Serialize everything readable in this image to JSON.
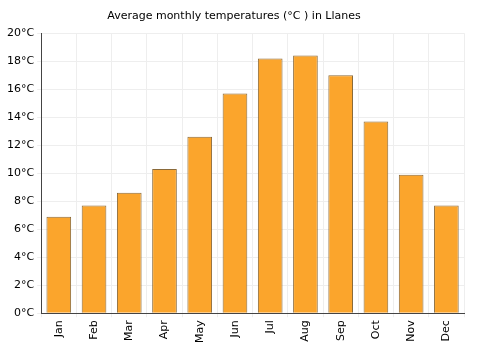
{
  "chart_data": {
    "type": "bar",
    "title": "Average monthly temperatures (°C ) in Llanes",
    "categories": [
      "Jan",
      "Feb",
      "Mar",
      "Apr",
      "May",
      "Jun",
      "Jul",
      "Aug",
      "Sep",
      "Oct",
      "Nov",
      "Dec"
    ],
    "values": [
      6.9,
      7.7,
      8.6,
      10.3,
      12.6,
      15.7,
      18.2,
      18.4,
      17.0,
      13.7,
      9.9,
      7.7
    ],
    "color": "#fba52c",
    "ylim": [
      0,
      20
    ],
    "yticks": [
      {
        "value": 0,
        "label": "0°C"
      },
      {
        "value": 2,
        "label": "2°C"
      },
      {
        "value": 4,
        "label": "4°C"
      },
      {
        "value": 6,
        "label": "6°C"
      },
      {
        "value": 8,
        "label": "8°C"
      },
      {
        "value": 10,
        "label": "10°C"
      },
      {
        "value": 12,
        "label": "12°C"
      },
      {
        "value": 14,
        "label": "14°C"
      },
      {
        "value": 16,
        "label": "16°C"
      },
      {
        "value": 18,
        "label": "18°C"
      },
      {
        "value": 20,
        "label": "20°C"
      }
    ],
    "grid": true
  }
}
